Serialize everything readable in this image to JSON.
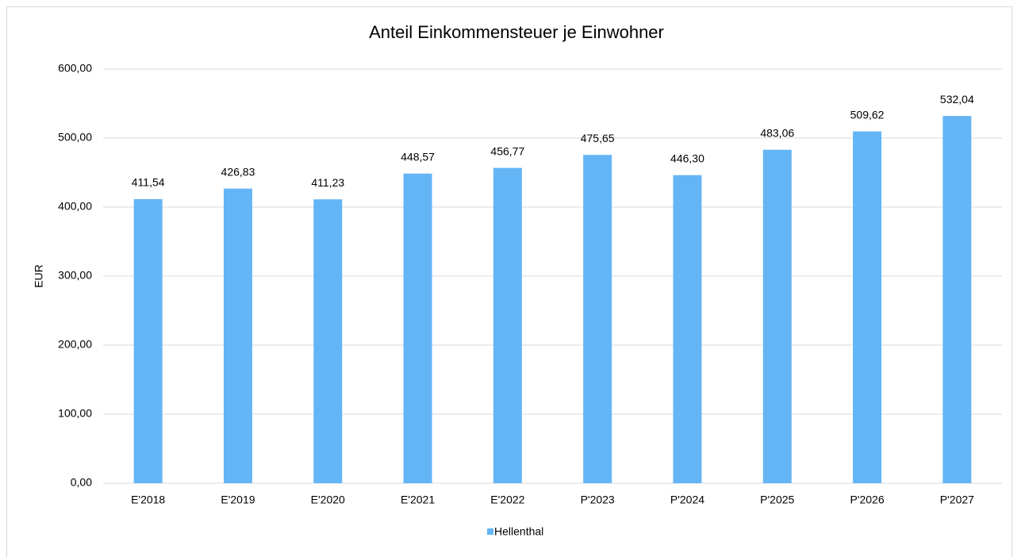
{
  "chart_data": {
    "type": "bar",
    "title": "Anteil Einkommensteuer je Einwohner",
    "y_label": "EUR",
    "categories": [
      "E'2018",
      "E'2019",
      "E'2020",
      "E'2021",
      "E'2022",
      "P'2023",
      "P'2024",
      "P'2025",
      "P'2026",
      "P'2027"
    ],
    "series": [
      {
        "name": "Hellenthal",
        "color": "#64b5f6",
        "values": [
          411.54,
          426.83,
          411.23,
          448.57,
          456.77,
          475.65,
          446.3,
          483.06,
          509.62,
          532.04
        ],
        "value_labels": [
          "411,54",
          "426,83",
          "411,23",
          "448,57",
          "456,77",
          "475,65",
          "446,30",
          "483,06",
          "509,62",
          "532,04"
        ]
      }
    ],
    "ylim": [
      0,
      600
    ],
    "yticks": [
      {
        "value": 0,
        "label": "0,00"
      },
      {
        "value": 100,
        "label": "100,00"
      },
      {
        "value": 200,
        "label": "200,00"
      },
      {
        "value": 300,
        "label": "300,00"
      },
      {
        "value": 400,
        "label": "400,00"
      },
      {
        "value": 500,
        "label": "500,00"
      },
      {
        "value": 600,
        "label": "600,00"
      }
    ],
    "grid": true,
    "legend": "bottom"
  }
}
